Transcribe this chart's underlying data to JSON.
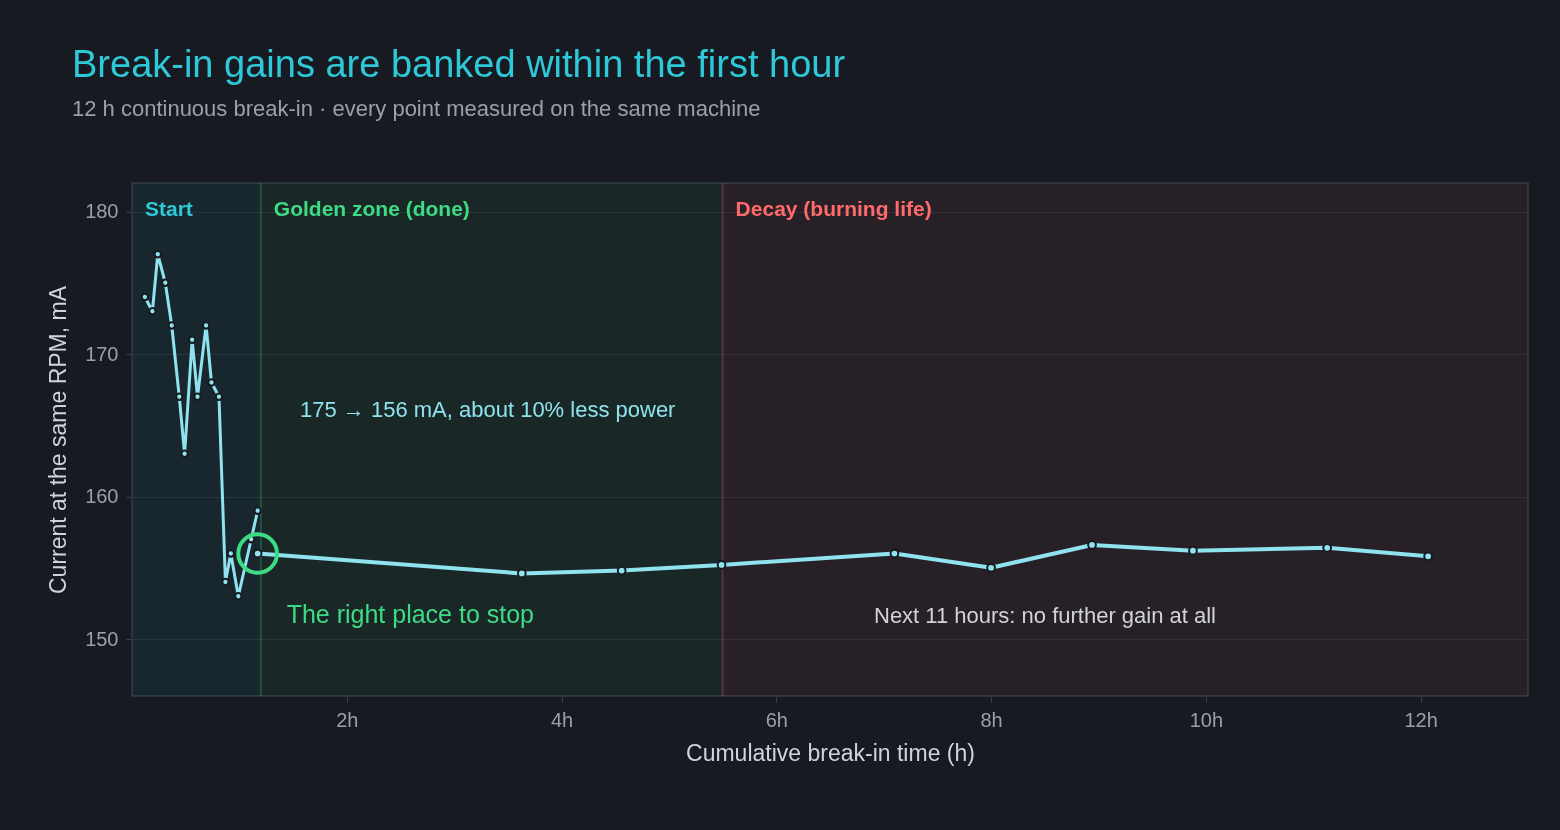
{
  "chart_data": {
    "type": "line",
    "title": "Break-in gains are banked within the first hour",
    "subtitle": "12 h continuous break-in · every point measured on the same machine",
    "xlabel": "Cumulative break-in time (h)",
    "ylabel": "Current at the same RPM, mA",
    "series": [
      {
        "color": "#8fe3ee",
        "x": [
          0.12,
          0.19,
          0.24,
          0.31,
          0.37,
          0.44,
          0.49,
          0.56,
          0.61,
          0.69,
          0.74,
          0.81,
          0.87,
          0.92,
          0.99,
          1.11,
          1.17
        ],
        "values": [
          174,
          173,
          177,
          175,
          172,
          167,
          163,
          171,
          167,
          172,
          168,
          167,
          154,
          156,
          153,
          157,
          159
        ]
      },
      {
        "color": "#8fe3ee",
        "x": [
          1.17,
          3.63,
          4.56,
          5.49,
          7.1,
          8.0,
          8.94,
          9.88,
          11.13,
          12.07
        ],
        "values": [
          156,
          154.6,
          154.8,
          155.2,
          156.0,
          155.0,
          156.6,
          156.2,
          156.4,
          155.8
        ]
      }
    ],
    "xlim": [
      0,
      13
    ],
    "ylim": [
      146,
      182
    ],
    "xticks": [
      {
        "value": 2,
        "label": "2h"
      },
      {
        "value": 4,
        "label": "4h"
      },
      {
        "value": 6,
        "label": "6h"
      },
      {
        "value": 8,
        "label": "8h"
      },
      {
        "value": 10,
        "label": "10h"
      },
      {
        "value": 12,
        "label": "12h"
      }
    ],
    "yticks": [
      150,
      160,
      170,
      180
    ],
    "bands": [
      {
        "axis": "x",
        "from": 0,
        "to": 1.2,
        "label": "Start",
        "color": "#2ec8d8"
      },
      {
        "axis": "x",
        "from": 1.2,
        "to": 5.5,
        "label": "Golden zone (done)",
        "color": "#3ddc84"
      },
      {
        "axis": "x",
        "from": 5.5,
        "to": 13,
        "label": "Decay (burning life)",
        "color": "#ff6b6b"
      }
    ],
    "ref_lines": [
      {
        "axis": "x",
        "value": 1.2,
        "color": "#3ddc84"
      },
      {
        "axis": "x",
        "value": 5.5,
        "color": "#ff6b6b"
      }
    ],
    "annotations": [
      "175 → 156 mA, about 10% less power",
      {
        "text": "The right place to stop",
        "x": 1.17,
        "y": 156
      },
      "Next 11 hours: no further gain at all"
    ],
    "grid": "y",
    "marker": "circle",
    "line_style": "solid"
  }
}
